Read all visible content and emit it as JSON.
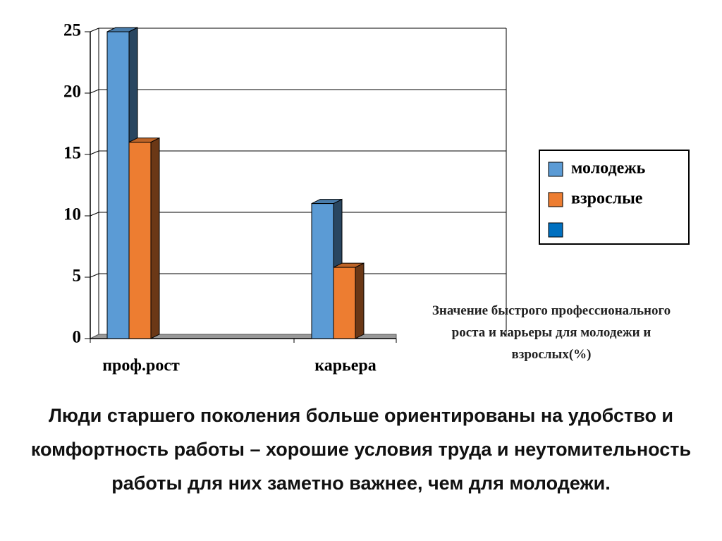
{
  "chart_data": {
    "type": "bar3d",
    "title": "Значение быстрого профессионального роста и карьеры для молодежи и взрослых(%)",
    "categories": [
      "проф.рост",
      "карьера"
    ],
    "series": [
      {
        "name": "молодежь",
        "color": "#5b9bd5",
        "values": [
          25,
          11
        ]
      },
      {
        "name": "взрослые",
        "color": "#ed7d31",
        "values": [
          16,
          5.8
        ]
      },
      {
        "name": null,
        "color": "#0070c0",
        "values": [
          null,
          null
        ]
      }
    ],
    "ylim": [
      0,
      25
    ],
    "yticks": [
      0,
      5,
      10,
      15,
      20,
      25
    ],
    "grid": true,
    "legend": "right"
  },
  "caption": "Люди старшего поколения больше ориентированы на удобство и комфортность работы – хорошие условия труда и неутомительность работы для них заметно важнее, чем для молодежи."
}
